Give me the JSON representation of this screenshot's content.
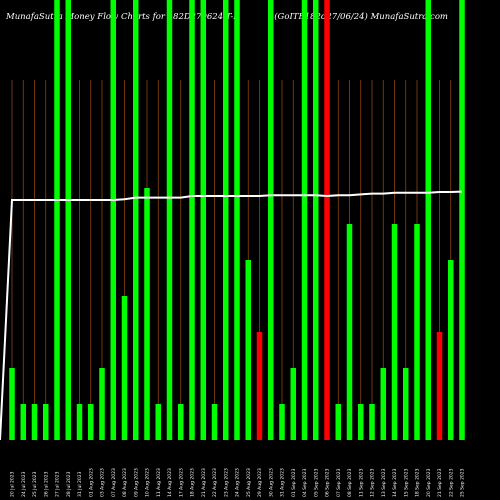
{
  "title_left": "MunafaSutra Money Flow Charts for 182D270624 T-B",
  "title_right": "(GoITB182d27/06/24) MunafaSutra.com",
  "chart_data": {
    "type": "bar",
    "ylim": [
      0,
      100
    ],
    "grid": true,
    "colors": {
      "up": "#00ff00",
      "down": "#ff0000",
      "price_line": "#ffffff",
      "grid": "#8b4513",
      "background": "#000000"
    },
    "categories": [
      "20 Jul 2023",
      "24 Jul 2023",
      "25 Jul 2023",
      "26 Jul 2023",
      "27 Jul 2023",
      "28 Jul 2023",
      "31 Jul 2023",
      "01 Aug 2023",
      "03 Aug 2023",
      "07 Aug 2023",
      "08 Aug 2023",
      "09 Aug 2023",
      "10 Aug 2023",
      "11 Aug 2023",
      "14 Aug 2023",
      "17 Aug 2023",
      "18 Aug 2023",
      "21 Aug 2023",
      "22 Aug 2023",
      "23 Aug 2023",
      "24 Aug 2023",
      "25 Aug 2023",
      "29 Aug 2023",
      "30 Aug 2023",
      "31 Aug 2023",
      "01 Sep 2023",
      "04 Sep 2023",
      "05 Sep 2023",
      "06 Sep 2023",
      "07 Sep 2023",
      "08 Sep 2023",
      "11 Sep 2023",
      "12 Sep 2023",
      "13 Sep 2023",
      "14 Sep 2023",
      "15 Sep 2023",
      "18 Sep 2023",
      "20 Sep 2023",
      "21 Sep 2023",
      "22 Sep 2023",
      "25 Sep 2023"
    ],
    "values": [
      20,
      10,
      10,
      10,
      100,
      100,
      10,
      10,
      20,
      100,
      40,
      100,
      70,
      10,
      100,
      10,
      100,
      100,
      10,
      100,
      100,
      50,
      30,
      100,
      10,
      20,
      100,
      100,
      100,
      10,
      60,
      10,
      10,
      20,
      60,
      20,
      60,
      100,
      30,
      50,
      100
    ],
    "directions": [
      "up",
      "up",
      "up",
      "up",
      "up",
      "up",
      "up",
      "up",
      "up",
      "up",
      "up",
      "up",
      "up",
      "up",
      "up",
      "up",
      "up",
      "up",
      "up",
      "up",
      "up",
      "up",
      "down",
      "up",
      "up",
      "up",
      "up",
      "up",
      "down",
      "up",
      "up",
      "up",
      "up",
      "up",
      "up",
      "up",
      "up",
      "up",
      "down",
      "up",
      "up"
    ],
    "price_line": [
      60,
      60,
      60,
      60,
      60,
      60,
      60,
      60,
      60,
      60,
      60.2,
      60.6,
      60.6,
      60.6,
      60.6,
      60.6,
      61,
      61,
      61,
      61,
      61,
      61,
      61,
      61.2,
      61.2,
      61.2,
      61.2,
      61.2,
      61,
      61.2,
      61.2,
      61.4,
      61.6,
      61.6,
      61.8,
      61.8,
      61.8,
      61.8,
      62,
      62,
      62.1
    ]
  }
}
